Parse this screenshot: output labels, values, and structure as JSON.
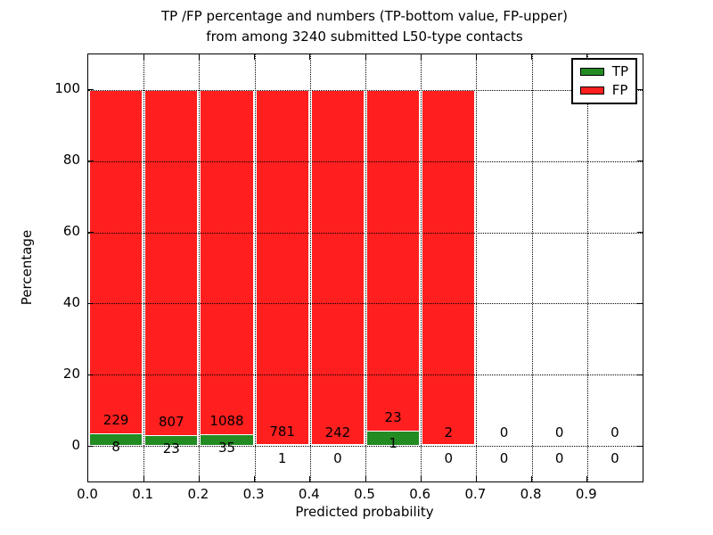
{
  "title": {
    "line1": "TP /FP percentage and numbers (TP-bottom value, FP-upper)",
    "line2": "from among 3240 submitted L50-type contacts"
  },
  "chart_data": {
    "type": "bar",
    "stacked": true,
    "normalized_to_percent": true,
    "title": "TP /FP percentage and numbers (TP-bottom value, FP-upper) from among 3240 submitted L50-type contacts",
    "xlabel": "Predicted probability",
    "ylabel": "Percentage",
    "xlim": [
      0.0,
      1.0
    ],
    "ylim": [
      -10,
      110
    ],
    "bin_width": 0.1,
    "bin_starts": [
      0.0,
      0.1,
      0.2,
      0.3,
      0.4,
      0.5,
      0.6,
      0.7,
      0.8,
      0.9
    ],
    "x_ticks": [
      "0.0",
      "0.1",
      "0.2",
      "0.3",
      "0.4",
      "0.5",
      "0.6",
      "0.7",
      "0.8",
      "0.9"
    ],
    "y_ticks": [
      0,
      20,
      40,
      60,
      80,
      100
    ],
    "grid": "dotted",
    "grid_above_bars": true,
    "legend_position": "upper right",
    "series": [
      {
        "name": "TP",
        "color": "#228b22",
        "counts": [
          8,
          23,
          35,
          1,
          0,
          1,
          0,
          0,
          0,
          0
        ]
      },
      {
        "name": "FP",
        "color": "#ff1f1f",
        "counts": [
          229,
          807,
          1088,
          781,
          242,
          23,
          2,
          0,
          0,
          0
        ]
      }
    ]
  }
}
